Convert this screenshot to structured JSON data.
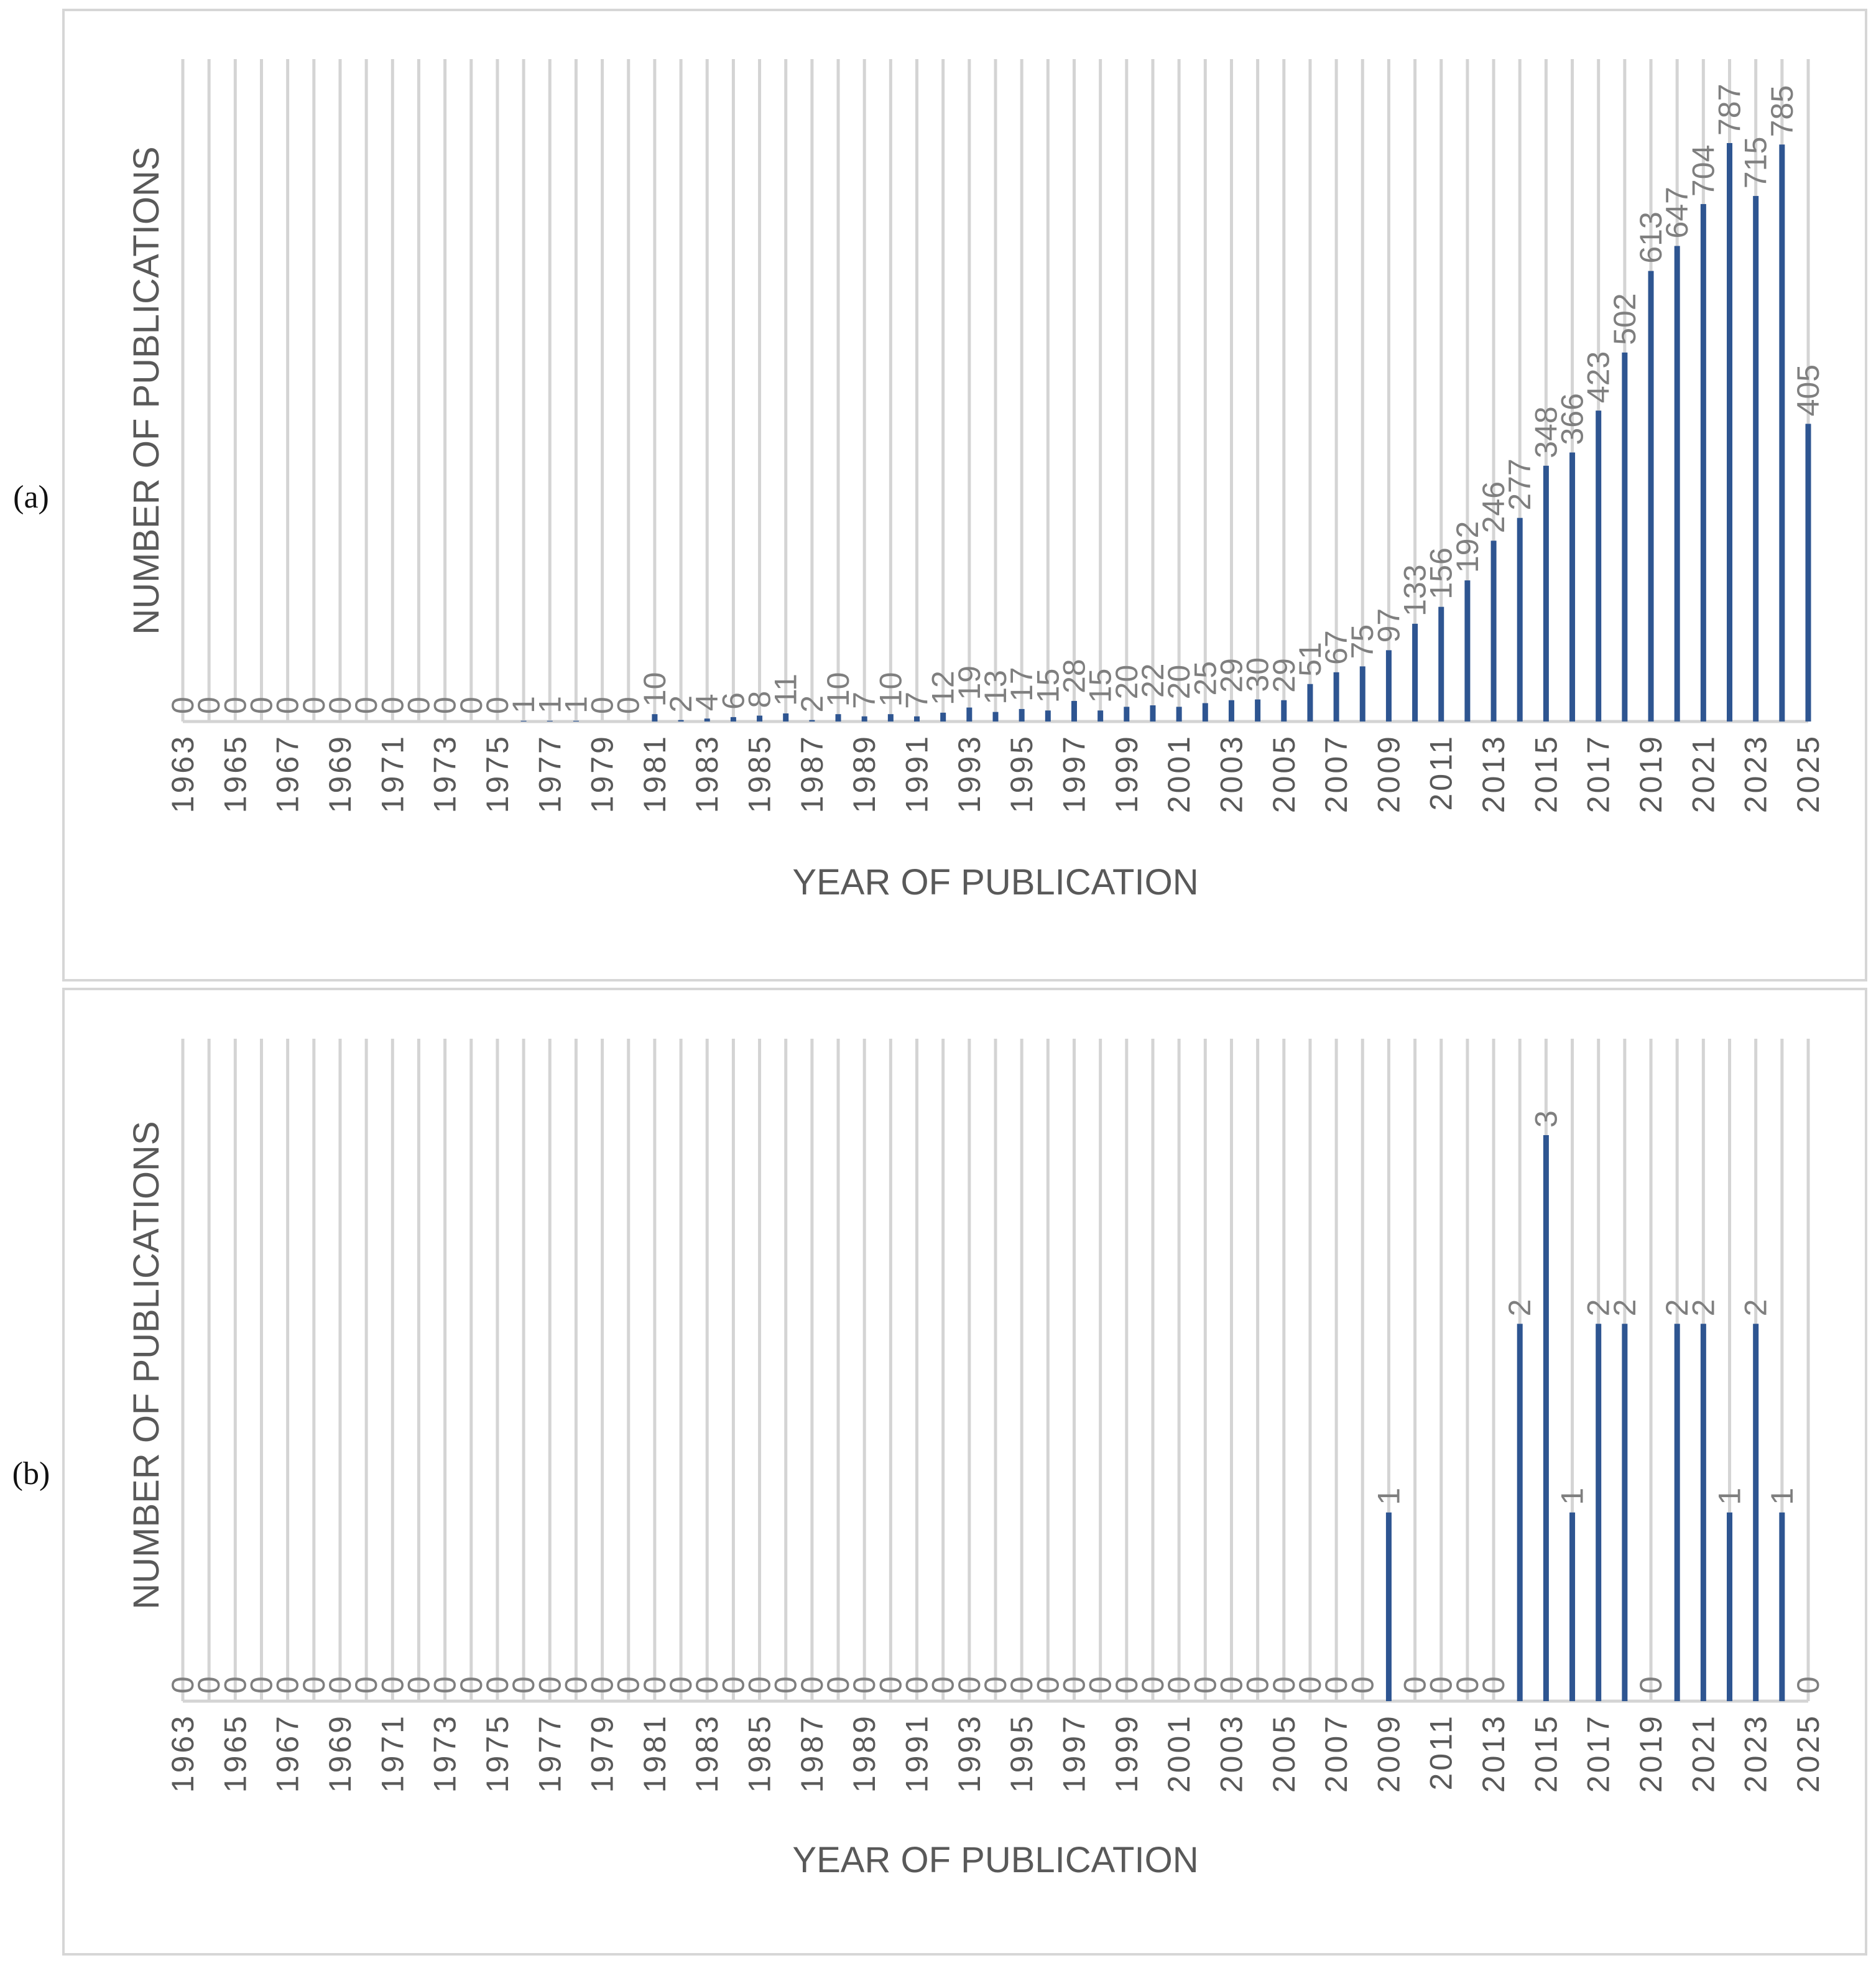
{
  "panels": [
    {
      "id": "a",
      "label": "(a)",
      "chart_data": {
        "type": "bar",
        "title": "",
        "xlabel": "YEAR OF PUBLICATION",
        "ylabel": "NUMBER OF PUBLICATIONS",
        "grid": "vertical",
        "ylim": [
          0,
          865
        ],
        "series_color": "#2e5591",
        "categories": [
          "1963",
          "1964",
          "1965",
          "1966",
          "1967",
          "1968",
          "1969",
          "1970",
          "1971",
          "1972",
          "1973",
          "1974",
          "1975",
          "1976",
          "1977",
          "1978",
          "1979",
          "1980",
          "1981",
          "1982",
          "1983",
          "1984",
          "1985",
          "1986",
          "1987",
          "1988",
          "1989",
          "1990",
          "1991",
          "1992",
          "1993",
          "1994",
          "1995",
          "1996",
          "1997",
          "1998",
          "1999",
          "2000",
          "2001",
          "2002",
          "2003",
          "2004",
          "2005",
          "2006",
          "2007",
          "2008",
          "2009",
          "2010",
          "2011",
          "2012",
          "2013",
          "2014",
          "2015",
          "2016",
          "2017",
          "2018",
          "2019",
          "2020",
          "2021",
          "2022",
          "2023",
          "2024",
          "2025"
        ],
        "tick_labels": [
          "1963",
          "1965",
          "1967",
          "1969",
          "1971",
          "1973",
          "1975",
          "1977",
          "1979",
          "1981",
          "1983",
          "1985",
          "1987",
          "1989",
          "1991",
          "1993",
          "1995",
          "1997",
          "1999",
          "2001",
          "2003",
          "2005",
          "2007",
          "2009",
          "2011",
          "2013",
          "2015",
          "2017",
          "2019",
          "2021",
          "2023",
          "2025"
        ],
        "values": [
          0,
          0,
          0,
          0,
          0,
          0,
          0,
          0,
          0,
          0,
          0,
          0,
          0,
          1,
          1,
          1,
          0,
          0,
          10,
          2,
          4,
          6,
          8,
          11,
          2,
          10,
          7,
          10,
          7,
          12,
          19,
          13,
          17,
          15,
          28,
          15,
          20,
          22,
          20,
          25,
          29,
          30,
          29,
          51,
          67,
          75,
          97,
          133,
          156,
          192,
          246,
          277,
          348,
          366,
          423,
          502,
          613,
          647,
          704,
          787,
          715,
          785,
          405
        ]
      }
    },
    {
      "id": "b",
      "label": "(b)",
      "chart_data": {
        "type": "bar",
        "title": "",
        "xlabel": "YEAR OF PUBLICATION",
        "ylabel": "NUMBER OF PUBLICATIONS",
        "grid": "vertical",
        "ylim": [
          0,
          3.5
        ],
        "series_color": "#2e5591",
        "categories": [
          "1963",
          "1964",
          "1965",
          "1966",
          "1967",
          "1968",
          "1969",
          "1970",
          "1971",
          "1972",
          "1973",
          "1974",
          "1975",
          "1976",
          "1977",
          "1978",
          "1979",
          "1980",
          "1981",
          "1982",
          "1983",
          "1984",
          "1985",
          "1986",
          "1987",
          "1988",
          "1989",
          "1990",
          "1991",
          "1992",
          "1993",
          "1994",
          "1995",
          "1996",
          "1997",
          "1998",
          "1999",
          "2000",
          "2001",
          "2002",
          "2003",
          "2004",
          "2005",
          "2006",
          "2007",
          "2008",
          "2009",
          "2010",
          "2011",
          "2012",
          "2013",
          "2014",
          "2015",
          "2016",
          "2017",
          "2018",
          "2019",
          "2020",
          "2021",
          "2022",
          "2023",
          "2024",
          "2025"
        ],
        "tick_labels": [
          "1963",
          "1965",
          "1967",
          "1969",
          "1971",
          "1973",
          "1975",
          "1977",
          "1979",
          "1981",
          "1983",
          "1985",
          "1987",
          "1989",
          "1991",
          "1993",
          "1995",
          "1997",
          "1999",
          "2001",
          "2003",
          "2005",
          "2007",
          "2009",
          "2011",
          "2013",
          "2015",
          "2017",
          "2019",
          "2021",
          "2023",
          "2025"
        ],
        "values": [
          0,
          0,
          0,
          0,
          0,
          0,
          0,
          0,
          0,
          0,
          0,
          0,
          0,
          0,
          0,
          0,
          0,
          0,
          0,
          0,
          0,
          0,
          0,
          0,
          0,
          0,
          0,
          0,
          0,
          0,
          0,
          0,
          0,
          0,
          0,
          0,
          0,
          0,
          0,
          0,
          0,
          0,
          0,
          0,
          0,
          0,
          1,
          0,
          0,
          0,
          0,
          2,
          3,
          1,
          2,
          2,
          0,
          2,
          2,
          1,
          2,
          1,
          0
        ]
      }
    }
  ]
}
